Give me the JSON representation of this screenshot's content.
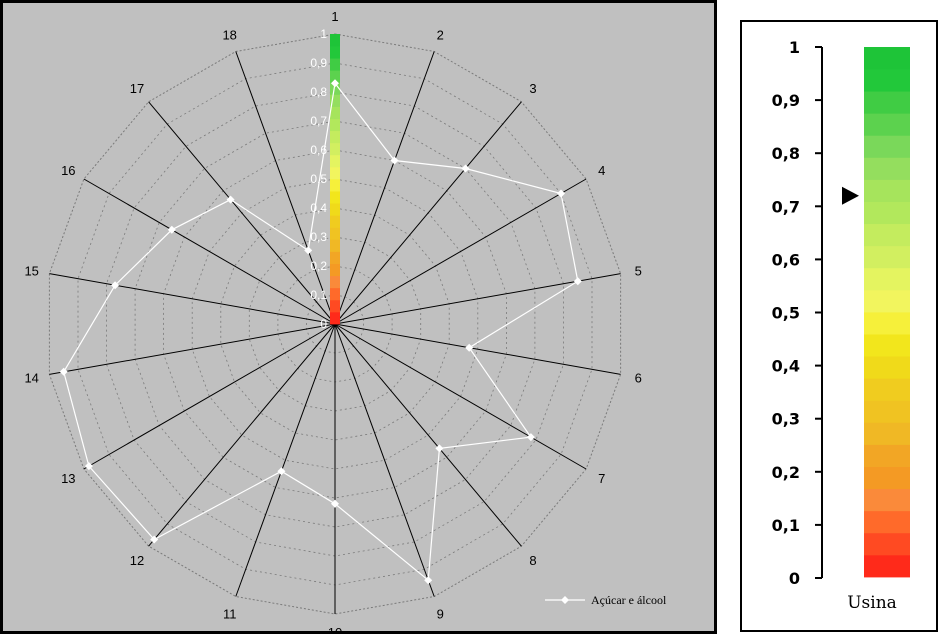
{
  "chart_data": [
    {
      "type": "radar",
      "categories": [
        "1",
        "2",
        "3",
        "4",
        "5",
        "6",
        "7",
        "8",
        "9",
        "10",
        "11",
        "12",
        "13",
        "14",
        "15",
        "16",
        "17",
        "18"
      ],
      "series": [
        {
          "name": "Açúcar e álcool",
          "values": [
            0.83,
            0.6,
            0.7,
            0.9,
            0.85,
            0.47,
            0.78,
            0.56,
            0.94,
            0.62,
            0.54,
            0.97,
            0.98,
            0.95,
            0.77,
            0.65,
            0.56,
            0.27
          ]
        }
      ],
      "rlim": [
        0,
        1
      ],
      "ring_labels": [
        "0",
        "0,1",
        "0,2",
        "0,3",
        "0,4",
        "0,5",
        "0,6",
        "0,7",
        "0,8",
        "0,9",
        "1"
      ],
      "grid": true,
      "legend_position": "bottom-right",
      "colors": {
        "background": "#c0c0c0",
        "spoke": "#000000",
        "ring": "#7a7a7a",
        "series_line": "#ffffff"
      }
    },
    {
      "type": "color-scale",
      "caption": "Usina",
      "tick_labels": [
        "0",
        "0,1",
        "0,2",
        "0,3",
        "0,4",
        "0,5",
        "0,6",
        "0,7",
        "0,8",
        "0,9",
        "1"
      ],
      "ylim": [
        0,
        1
      ],
      "marker_value": 0.72,
      "bands": [
        "#ff2a1a",
        "#ff4a22",
        "#ff6a2a",
        "#fa8a3a",
        "#f49a24",
        "#f2a625",
        "#f0b825",
        "#f0c322",
        "#f0cc1f",
        "#f0da1a",
        "#f2e61c",
        "#f6f03a",
        "#f2f55e",
        "#e4f460",
        "#d2ef60",
        "#c4ec5e",
        "#b2e85c",
        "#a6e45c",
        "#94de5e",
        "#7ad85a",
        "#5cd24e",
        "#40cc44",
        "#22c83a",
        "#1ec438"
      ]
    }
  ]
}
